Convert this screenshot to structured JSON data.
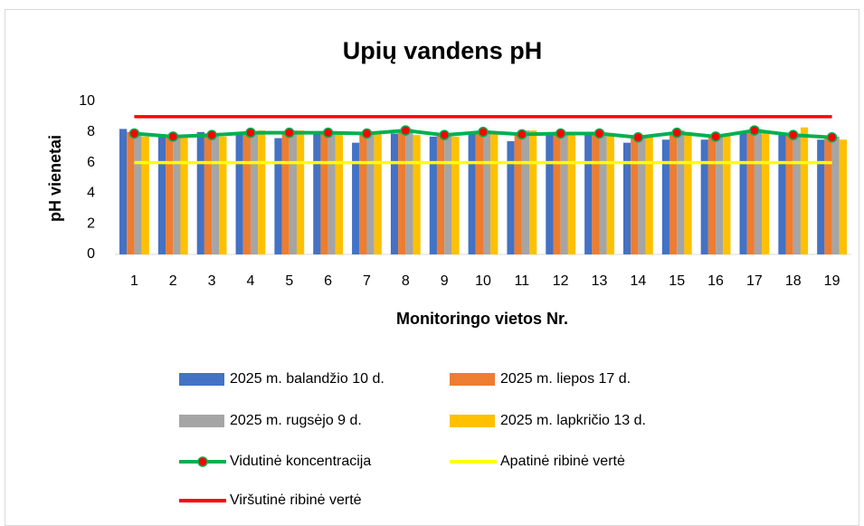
{
  "chart_data": {
    "type": "bar",
    "title": "Upių vandens pH",
    "x_label": "Monitoringo vietos Nr.",
    "y_label": "pH vienetai",
    "categories": [
      "1",
      "2",
      "3",
      "4",
      "5",
      "6",
      "7",
      "8",
      "9",
      "10",
      "11",
      "12",
      "13",
      "14",
      "15",
      "16",
      "17",
      "18",
      "19"
    ],
    "ylim": [
      0,
      10
    ],
    "yticks": [
      0,
      2,
      4,
      6,
      8,
      10
    ],
    "series": [
      {
        "name": "2025 m. balandžio 10 d.",
        "type": "bar",
        "color": "#4472c4",
        "values": [
          8.2,
          7.7,
          8.0,
          7.9,
          7.6,
          7.9,
          7.3,
          7.9,
          7.7,
          7.9,
          7.4,
          7.9,
          7.9,
          7.3,
          7.5,
          7.5,
          7.9,
          7.9,
          7.5
        ]
      },
      {
        "name": "2025 m. liepos 17 d.",
        "type": "bar",
        "color": "#ed7d31",
        "values": [
          8.0,
          7.7,
          7.8,
          8.0,
          8.0,
          8.0,
          7.9,
          8.1,
          7.8,
          8.0,
          7.9,
          7.9,
          8.0,
          7.7,
          8.0,
          7.7,
          8.1,
          7.8,
          7.7
        ]
      },
      {
        "name": "2025 m. rugsėjo 9 d.",
        "type": "bar",
        "color": "#a5a5a5",
        "values": [
          7.8,
          7.6,
          7.7,
          8.0,
          8.1,
          8.0,
          8.0,
          8.2,
          7.9,
          8.1,
          8.1,
          7.9,
          7.8,
          7.8,
          8.1,
          7.8,
          8.2,
          7.8,
          7.7
        ]
      },
      {
        "name": "2025 m. lapkričio 13 d.",
        "type": "bar",
        "color": "#ffc000",
        "values": [
          7.7,
          7.7,
          7.7,
          8.1,
          8.1,
          8.0,
          8.0,
          7.8,
          7.7,
          8.0,
          8.1,
          7.9,
          7.8,
          7.7,
          8.0,
          7.8,
          8.0,
          8.3,
          7.5
        ]
      },
      {
        "name": "Vidutinė koncentracija",
        "type": "line",
        "color": "#00b050",
        "marker_color": "#ff0000",
        "values": [
          7.9,
          7.7,
          7.8,
          7.95,
          7.95,
          7.95,
          7.9,
          8.1,
          7.8,
          8.0,
          7.85,
          7.9,
          7.9,
          7.65,
          7.95,
          7.7,
          8.1,
          7.8,
          7.65
        ]
      },
      {
        "name": "Apatinė ribinė vertė",
        "type": "line",
        "color": "#ffff00",
        "values": [
          6,
          6,
          6,
          6,
          6,
          6,
          6,
          6,
          6,
          6,
          6,
          6,
          6,
          6,
          6,
          6,
          6,
          6,
          6
        ]
      },
      {
        "name": "Viršutinė ribinė vertė",
        "type": "line",
        "color": "#ff0000",
        "values": [
          9,
          9,
          9,
          9,
          9,
          9,
          9,
          9,
          9,
          9,
          9,
          9,
          9,
          9,
          9,
          9,
          9,
          9,
          9
        ]
      }
    ]
  }
}
